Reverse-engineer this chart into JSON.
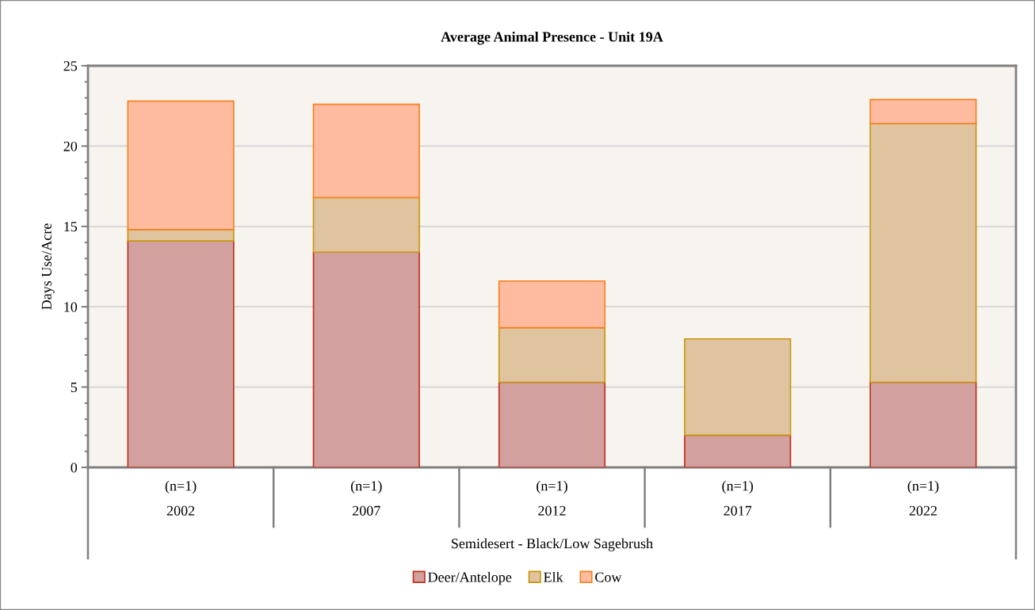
{
  "chart_data": {
    "type": "bar",
    "title": "Average Animal Presence - Unit 19A",
    "xlabel": "Semidesert - Black/Low Sagebrush",
    "ylabel": "Days Use/Acre",
    "categories": [
      "(n=1)\n2002",
      "(n=1)\n2007",
      "(n=1)\n2012",
      "(n=1)\n2017",
      "(n=1)\n2022"
    ],
    "stacked": true,
    "series": [
      {
        "name": "Deer/Antelope",
        "color": "#d2a09f",
        "values": [
          14.1,
          13.4,
          5.3,
          2.0,
          5.3
        ]
      },
      {
        "name": "Elk",
        "color": "#e0c4a0",
        "values": [
          0.7,
          3.4,
          3.4,
          6.0,
          16.1
        ]
      },
      {
        "name": "Cow",
        "color": "#ffbba0",
        "values": [
          8.0,
          5.8,
          2.9,
          null,
          1.5
        ]
      }
    ],
    "ylim": [
      0,
      25
    ],
    "yticks": [
      0,
      5,
      10,
      15,
      20,
      25
    ],
    "grid": "y",
    "legend": "bottom"
  }
}
